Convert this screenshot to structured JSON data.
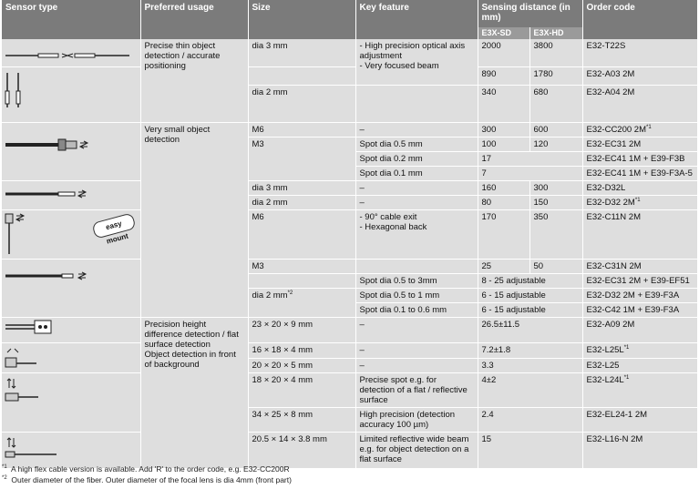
{
  "headers": {
    "sensor_type": "Sensor type",
    "preferred_usage": "Preferred usage",
    "size": "Size",
    "key_feature": "Key feature",
    "sensing_distance": "Sensing distance (in mm)",
    "e3x_sd": "E3X-SD",
    "e3x_hd": "E3X-HD",
    "order_code": "Order code"
  },
  "usage": {
    "precise_thin": "Precise thin object detection / accurate positioning",
    "very_small": "Very small object detection",
    "height_diff": "Precision height difference detection / flat surface detection",
    "object_bg": "Object detection in front of background"
  },
  "rows": [
    {
      "size": "dia 3 mm",
      "feature": "- High precision optical axis adjustment\n- Very focused beam",
      "sd": "2000",
      "hd": "3800",
      "code": "E32-T22S",
      "sup": ""
    },
    {
      "size": "",
      "feature": "",
      "sd": "890",
      "hd": "1780",
      "code": "E32-A03 2M",
      "sup": ""
    },
    {
      "size": "dia 2 mm",
      "feature": "",
      "sd": "340",
      "hd": "680",
      "code": "E32-A04 2M",
      "sup": ""
    },
    {
      "size": "M6",
      "feature": "–",
      "sd": "300",
      "hd": "600",
      "code": "E32-CC200 2M",
      "sup": "*1"
    },
    {
      "size": "M3",
      "feature": "Spot dia 0.5 mm",
      "sd": "100",
      "hd": "120",
      "code": "E32-EC31 2M",
      "sup": ""
    },
    {
      "size": "",
      "feature": "Spot dia 0.2 mm",
      "sd": "17",
      "hd": "",
      "code": "E32-EC41 1M + E39-F3B",
      "sup": ""
    },
    {
      "size": "",
      "feature": "Spot dia 0.1 mm",
      "sd": "7",
      "hd": "",
      "code": "E32-EC41 1M + E39-F3A-5",
      "sup": ""
    },
    {
      "size": "dia 3 mm",
      "feature": "–",
      "sd": "160",
      "hd": "300",
      "code": "E32-D32L",
      "sup": ""
    },
    {
      "size": "dia 2 mm",
      "feature": "–",
      "sd": "80",
      "hd": "150",
      "code": "E32-D32 2M",
      "sup": "*1"
    },
    {
      "size": "M6",
      "feature": "- 90° cable exit\n- Hexagonal back",
      "sd": "170",
      "hd": "350",
      "code": "E32-C11N 2M",
      "sup": ""
    },
    {
      "size": "M3",
      "feature": "",
      "sd": "25",
      "hd": "50",
      "code": "E32-C31N 2M",
      "sup": ""
    },
    {
      "size": "",
      "feature": "Spot dia 0.5 to 3mm",
      "sd": "8 - 25 adjustable",
      "hd": "",
      "code": "E32-EC31 2M + E39-EF51",
      "sup": ""
    },
    {
      "size": "dia 2 mm",
      "feature": "Spot dia 0.5 to 1 mm",
      "sd": "6 - 15 adjustable",
      "hd": "",
      "code": "E32-D32 2M + E39-F3A",
      "sup": ""
    },
    {
      "size": "",
      "feature": "Spot dia 0.1 to 0.6 mm",
      "sd": "6 - 15 adjustable",
      "hd": "",
      "code": "E32-C42 1M + E39-F3A",
      "sup": ""
    },
    {
      "size": "23 × 20 × 9 mm",
      "feature": "–",
      "sd": "26.5±11.5",
      "hd": "",
      "code": "E32-A09 2M",
      "sup": ""
    },
    {
      "size": "16 × 18 × 4 mm",
      "feature": "–",
      "sd": "7.2±1.8",
      "hd": "",
      "code": "E32-L25L",
      "sup": "*1"
    },
    {
      "size": "20 × 20 × 5 mm",
      "feature": "–",
      "sd": "3.3",
      "hd": "",
      "code": "E32-L25",
      "sup": ""
    },
    {
      "size": "18 × 20 × 4 mm",
      "feature": "Precise spot e.g. for detection of a flat / reflective surface",
      "sd": "4±2",
      "hd": "",
      "code": "E32-L24L",
      "sup": "*1"
    },
    {
      "size": "34 × 25 × 8 mm",
      "feature": "High precision (detection accuracy 100 µm)",
      "sd": "2.4",
      "hd": "",
      "code": "E32-EL24-1 2M",
      "sup": ""
    },
    {
      "size": "20.5 × 14 × 3.8 mm",
      "feature": "Limited reflective wide beam e.g. for object detection on a flat surface",
      "sd": "15",
      "hd": "",
      "code": "E32-L16-N 2M",
      "sup": ""
    }
  ],
  "size_dia2_sup": "*2",
  "badge": "easy mount",
  "footnotes": {
    "n1_mark": "*1",
    "n1": "A high flex cable version is available. Add 'R' to the order code, e.g. E32-CC200R",
    "n2_mark": "*2",
    "n2": "Outer diameter of the fiber. Outer diameter of the focal lens is dia 4mm (front part)"
  }
}
